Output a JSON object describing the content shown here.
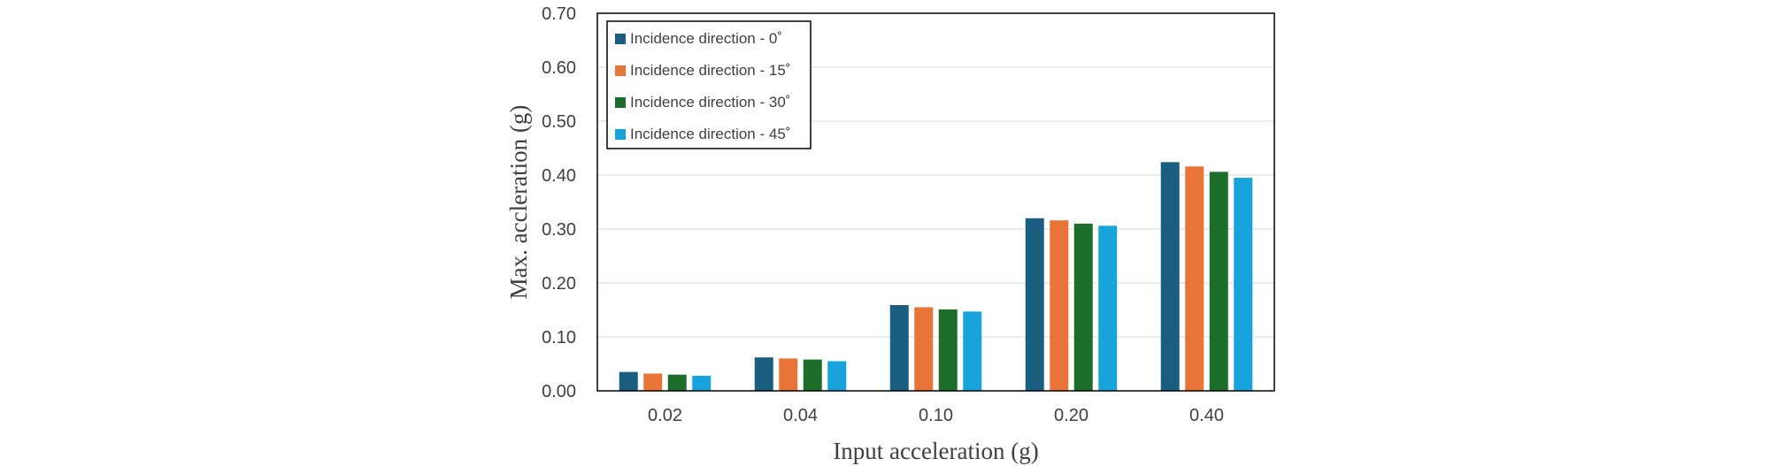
{
  "chart_data": {
    "type": "bar",
    "title": "",
    "xlabel": "Input acceleration (g)",
    "ylabel": "Max. accleration (g)",
    "categories": [
      "0.02",
      "0.04",
      "0.10",
      "0.20",
      "0.40"
    ],
    "ylim": [
      0,
      0.7
    ],
    "yticks": [
      "0.00",
      "0.10",
      "0.20",
      "0.30",
      "0.40",
      "0.50",
      "0.60",
      "0.70"
    ],
    "ytick_values": [
      0,
      0.1,
      0.2,
      0.3,
      0.4,
      0.5,
      0.6,
      0.7
    ],
    "grid": true,
    "legend_position": "top-left",
    "series": [
      {
        "name": "Incidence direction - 0˚",
        "color": "#1a5e82",
        "values": [
          0.035,
          0.062,
          0.159,
          0.32,
          0.424
        ]
      },
      {
        "name": "Incidence direction - 15˚",
        "color": "#e87537",
        "values": [
          0.032,
          0.06,
          0.155,
          0.316,
          0.416
        ]
      },
      {
        "name": "Incidence direction - 30˚",
        "color": "#1c6e2a",
        "values": [
          0.03,
          0.058,
          0.151,
          0.31,
          0.406
        ]
      },
      {
        "name": "Incidence direction - 45˚",
        "color": "#17a3dc",
        "values": [
          0.028,
          0.055,
          0.147,
          0.306,
          0.395
        ]
      }
    ]
  }
}
